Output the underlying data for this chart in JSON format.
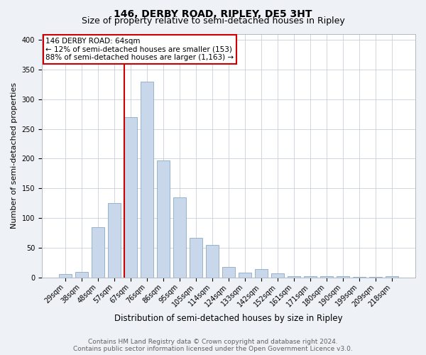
{
  "title": "146, DERBY ROAD, RIPLEY, DE5 3HT",
  "subtitle": "Size of property relative to semi-detached houses in Ripley",
  "xlabel": "Distribution of semi-detached houses by size in Ripley",
  "ylabel": "Number of semi-detached properties",
  "categories": [
    "29sqm",
    "38sqm",
    "48sqm",
    "57sqm",
    "67sqm",
    "76sqm",
    "86sqm",
    "95sqm",
    "105sqm",
    "114sqm",
    "124sqm",
    "133sqm",
    "142sqm",
    "152sqm",
    "161sqm",
    "171sqm",
    "180sqm",
    "190sqm",
    "199sqm",
    "209sqm",
    "218sqm"
  ],
  "values": [
    6,
    10,
    85,
    125,
    270,
    330,
    197,
    135,
    67,
    55,
    18,
    9,
    15,
    7,
    3,
    2,
    2,
    2,
    1,
    1,
    3
  ],
  "bar_color": "#c8d8ea",
  "bar_edge_color": "#8aaac8",
  "annotation_title": "146 DERBY ROAD: 64sqm",
  "annotation_line1": "← 12% of semi-detached houses are smaller (153)",
  "annotation_line2": "88% of semi-detached houses are larger (1,163) →",
  "annotation_box_color": "#cc0000",
  "vline_color": "#cc0000",
  "vline_x_index": 4,
  "footer_line1": "Contains HM Land Registry data © Crown copyright and database right 2024.",
  "footer_line2": "Contains public sector information licensed under the Open Government Licence v3.0.",
  "background_color": "#eef2f6",
  "plot_background_color": "#ffffff",
  "grid_color": "#c8d0d8",
  "ylim": [
    0,
    410
  ],
  "title_fontsize": 10,
  "subtitle_fontsize": 9,
  "xlabel_fontsize": 8.5,
  "ylabel_fontsize": 8,
  "tick_fontsize": 7,
  "annotation_fontsize": 7.5,
  "footer_fontsize": 6.5
}
